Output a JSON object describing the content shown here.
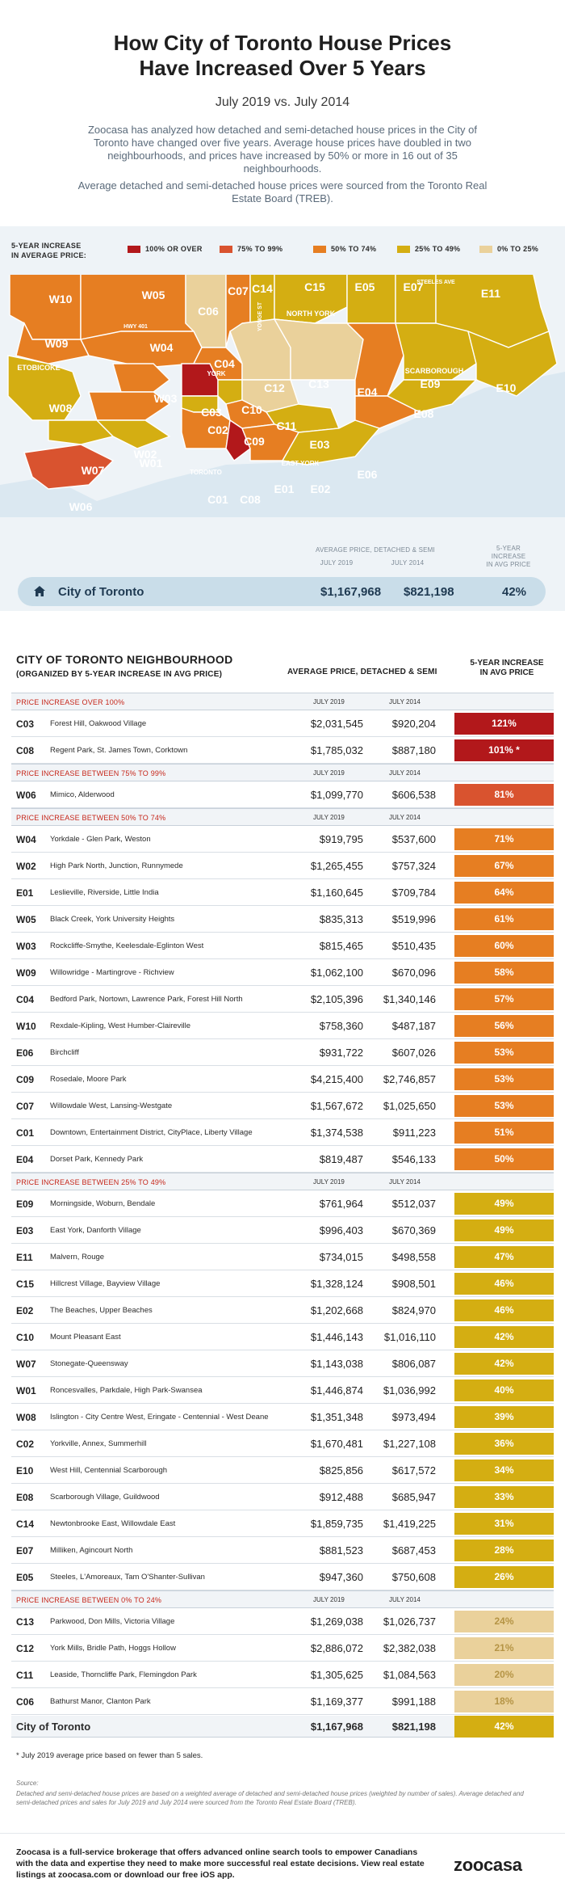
{
  "header": {
    "title_line1": "How City of Toronto House Prices",
    "title_line2": "Have Increased Over 5 Years",
    "subtitle": "July 2019 vs. July 2014",
    "intro": "Zoocasa has analyzed how detached and semi-detached house prices in the City of Toronto have changed over five years. Average house prices have doubled in two neighbourhoods, and prices have increased by 50% or more in 16 out of 35 neighbourhoods.",
    "intro2": "Average detached and semi-detached house prices were sourced from the Toronto Real Estate Board (TREB)."
  },
  "legend": {
    "title_line1": "5-YEAR INCREASE",
    "title_line2": "IN AVERAGE PRICE:",
    "items": [
      {
        "label": "100% OR OVER",
        "color": "#b2181b"
      },
      {
        "label": "75% TO 99%",
        "color": "#d9532f"
      },
      {
        "label": "50% TO 74%",
        "color": "#e67e22"
      },
      {
        "label": "25% TO 49%",
        "color": "#d4ae12"
      },
      {
        "label": "0% TO 25%",
        "color": "#ead19b"
      }
    ]
  },
  "map": {
    "labels": {
      "steeles": "STEELES AVE",
      "hwy": "HWY 401",
      "yonge": "YONGE ST",
      "north_york": "NORTH YORK",
      "york": "YORK",
      "etobicoke": "ETOBICOKE",
      "scarborough": "SCARBOROUGH",
      "east_york": "EAST YORK",
      "toronto": "TORONTO"
    },
    "avg_header": "AVERAGE PRICE, DETACHED & SEMI",
    "col_2019": "JULY 2019",
    "col_2014": "JULY 2014",
    "inc_header_line1": "5-YEAR",
    "inc_header_line2": "INCREASE",
    "inc_header_line3": "IN AVG PRICE",
    "city": {
      "name": "City of Toronto",
      "p2019": "$1,167,968",
      "p2014": "$821,198",
      "pct": "42%"
    }
  },
  "table": {
    "title": "CITY OF TORONTO NEIGHBOURHOOD",
    "subtitle": "(ORGANIZED BY 5-YEAR INCREASE IN AVG PRICE)",
    "h_avg": "AVERAGE PRICE, DETACHED & SEMI",
    "h_inc_line1": "5-YEAR INCREASE",
    "h_inc_line2": "IN AVG PRICE",
    "col_2019": "JULY 2019",
    "col_2014": "JULY 2014"
  },
  "chart_data": {
    "type": "table",
    "title": "How City of Toronto House Prices Have Increased Over 5 Years",
    "columns": [
      "Code",
      "Neighbourhood",
      "July 2019",
      "July 2014",
      "5-Year Increase"
    ],
    "groups": [
      {
        "label": "PRICE INCREASE OVER 100%",
        "color": "#b2181b",
        "rows": [
          [
            "C03",
            "Forest Hill, Oakwood Village",
            "$2,031,545",
            "$920,204",
            "121%"
          ],
          [
            "C08",
            "Regent Park, St. James Town, Corktown",
            "$1,785,032",
            "$887,180",
            "101% *"
          ]
        ]
      },
      {
        "label": "PRICE INCREASE BETWEEN 75% TO 99%",
        "color": "#d9532f",
        "rows": [
          [
            "W06",
            "Mimico, Alderwood",
            "$1,099,770",
            "$606,538",
            "81%"
          ]
        ]
      },
      {
        "label": "PRICE INCREASE BETWEEN 50% TO 74%",
        "color": "#e67e22",
        "rows": [
          [
            "W04",
            "Yorkdale - Glen Park, Weston",
            "$919,795",
            "$537,600",
            "71%"
          ],
          [
            "W02",
            "High Park North, Junction, Runnymede",
            "$1,265,455",
            "$757,324",
            "67%"
          ],
          [
            "E01",
            "Leslieville, Riverside, Little India",
            "$1,160,645",
            "$709,784",
            "64%"
          ],
          [
            "W05",
            "Black Creek, York University Heights",
            "$835,313",
            "$519,996",
            "61%"
          ],
          [
            "W03",
            "Rockcliffe-Smythe, Keelesdale-Eglinton West",
            "$815,465",
            "$510,435",
            "60%"
          ],
          [
            "W09",
            "Willowridge - Martingrove - Richview",
            "$1,062,100",
            "$670,096",
            "58%"
          ],
          [
            "C04",
            "Bedford Park, Nortown, Lawrence Park, Forest Hill North",
            "$2,105,396",
            "$1,340,146",
            "57%"
          ],
          [
            "W10",
            "Rexdale-Kipling, West Humber-Claireville",
            "$758,360",
            "$487,187",
            "56%"
          ],
          [
            "E06",
            "Birchcliff",
            "$931,722",
            "$607,026",
            "53%"
          ],
          [
            "C09",
            "Rosedale, Moore Park",
            "$4,215,400",
            "$2,746,857",
            "53%"
          ],
          [
            "C07",
            "Willowdale West, Lansing-Westgate",
            "$1,567,672",
            "$1,025,650",
            "53%"
          ],
          [
            "C01",
            "Downtown, Entertainment District, CityPlace, Liberty Village",
            "$1,374,538",
            "$911,223",
            "51%"
          ],
          [
            "E04",
            "Dorset Park, Kennedy Park",
            "$819,487",
            "$546,133",
            "50%"
          ]
        ]
      },
      {
        "label": "PRICE INCREASE BETWEEN 25% TO 49%",
        "color": "#d4ae12",
        "rows": [
          [
            "E09",
            "Morningside, Woburn, Bendale",
            "$761,964",
            "$512,037",
            "49%"
          ],
          [
            "E03",
            "East York, Danforth Village",
            "$996,403",
            "$670,369",
            "49%"
          ],
          [
            "E11",
            "Malvern, Rouge",
            "$734,015",
            "$498,558",
            "47%"
          ],
          [
            "C15",
            "Hillcrest Village, Bayview Village",
            "$1,328,124",
            "$908,501",
            "46%"
          ],
          [
            "E02",
            "The Beaches, Upper Beaches",
            "$1,202,668",
            "$824,970",
            "46%"
          ],
          [
            "C10",
            "Mount Pleasant East",
            "$1,446,143",
            "$1,016,110",
            "42%"
          ],
          [
            "W07",
            "Stonegate-Queensway",
            "$1,143,038",
            "$806,087",
            "42%"
          ],
          [
            "W01",
            "Roncesvalles, Parkdale, High Park-Swansea",
            "$1,446,874",
            "$1,036,992",
            "40%"
          ],
          [
            "W08",
            "Islington - City Centre West, Eringate - Centennial - West Deane",
            "$1,351,348",
            "$973,494",
            "39%"
          ],
          [
            "C02",
            "Yorkville, Annex, Summerhill",
            "$1,670,481",
            "$1,227,108",
            "36%"
          ],
          [
            "E10",
            "West Hill, Centennial Scarborough",
            "$825,856",
            "$617,572",
            "34%"
          ],
          [
            "E08",
            "Scarborough Village, Guildwood",
            "$912,488",
            "$685,947",
            "33%"
          ],
          [
            "C14",
            "Newtonbrooke East, Willowdale East",
            "$1,859,735",
            "$1,419,225",
            "31%"
          ],
          [
            "E07",
            "Milliken, Agincourt North",
            "$881,523",
            "$687,453",
            "28%"
          ],
          [
            "E05",
            "Steeles, L'Amoreaux, Tam O'Shanter-Sullivan",
            "$947,360",
            "$750,608",
            "26%"
          ]
        ]
      },
      {
        "label": "PRICE INCREASE BETWEEN 0% TO 24%",
        "color": "#ead19b",
        "rows": [
          [
            "C13",
            "Parkwood, Don Mills, Victoria Village",
            "$1,269,038",
            "$1,026,737",
            "24%"
          ],
          [
            "C12",
            "York Mills, Bridle Path, Hoggs Hollow",
            "$2,886,072",
            "$2,382,038",
            "21%"
          ],
          [
            "C11",
            "Leaside, Thorncliffe Park, Flemingdon Park",
            "$1,305,625",
            "$1,084,563",
            "20%"
          ],
          [
            "C06",
            "Bathurst Manor, Clanton Park",
            "$1,169,377",
            "$991,188",
            "18%"
          ]
        ]
      }
    ],
    "total": [
      "City of Toronto",
      "$1,167,968",
      "$821,198",
      "42%"
    ]
  },
  "notes": {
    "footnote": "* July 2019 average price based on fewer than 5 sales.",
    "source_label": "Source:",
    "source": "Detached and semi-detached house prices are based on a weighted average of detached and semi-detached house prices (weighted by number of sales). Average detached and semi-detached prices and sales for July 2019 and July 2014 were sourced from the Toronto Real Estate Board (TREB)."
  },
  "footer": {
    "text": "Zoocasa is a full-service brokerage that offers advanced online search tools to empower Canadians with the data and expertise they need to make more successful real estate decisions. View real estate listings at zoocasa.com or download our free iOS app.",
    "logo": "zoocasa"
  }
}
